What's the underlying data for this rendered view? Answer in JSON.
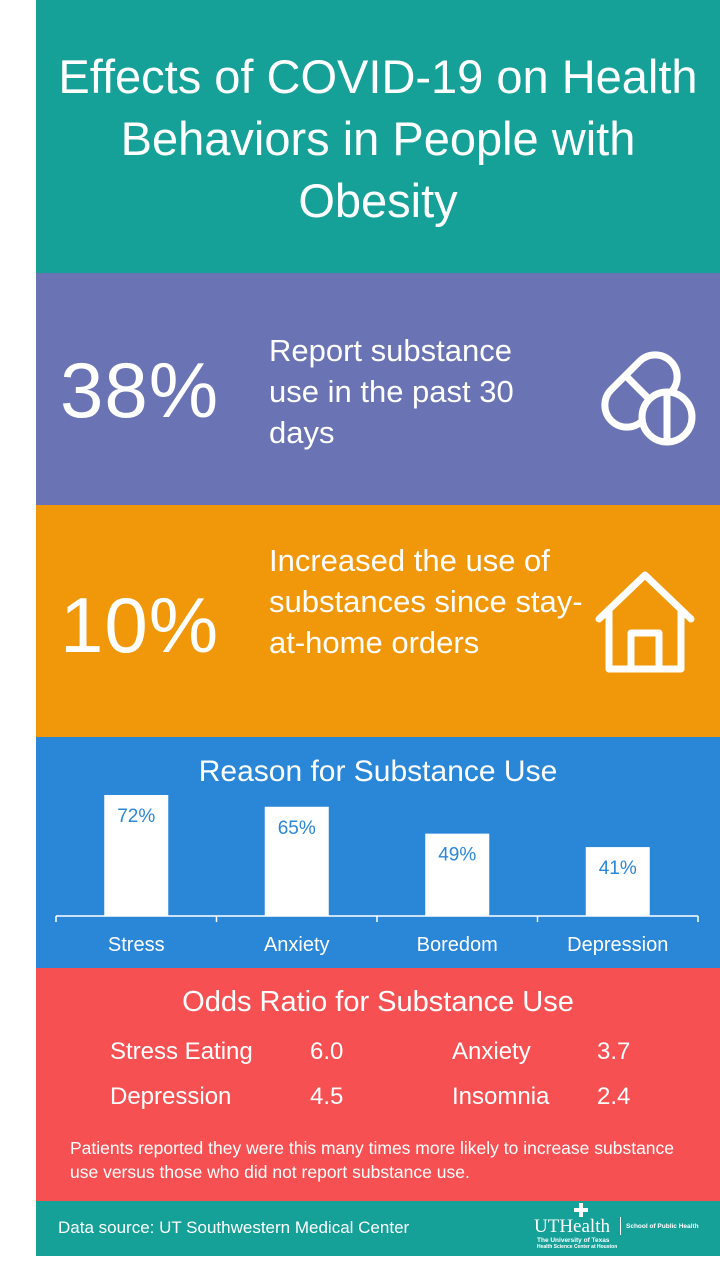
{
  "title": "Effects of COVID-19 on Health Behaviors in People with Obesity",
  "stat1": {
    "value": "38%",
    "text": "Report substance use in the past 30 days",
    "icon": "pills-icon"
  },
  "stat2": {
    "value": "10%",
    "text": "Increased the use of substances since stay-at-home orders",
    "icon": "house-icon"
  },
  "chart_data": {
    "type": "bar",
    "title": "Reason for Substance Use",
    "categories": [
      "Stress",
      "Anxiety",
      "Boredom",
      "Depression"
    ],
    "values": [
      72,
      65,
      49,
      41
    ],
    "value_labels": [
      "72%",
      "65%",
      "49%",
      "41%"
    ],
    "ylim": [
      0,
      72
    ],
    "bar_color": "#ffffff",
    "label_color": "#2a87d8"
  },
  "odds": {
    "title": "Odds Ratio for Substance Use",
    "items": [
      {
        "name": "Stress Eating",
        "value": "6.0"
      },
      {
        "name": "Anxiety",
        "value": "3.7"
      },
      {
        "name": "Depression",
        "value": "4.5"
      },
      {
        "name": "Insomnia",
        "value": "2.4"
      }
    ],
    "note": "Patients reported they were this many times more likely to increase substance use versus those who did not report substance use."
  },
  "footer": {
    "source": "Data source: UT Southwestern Medical Center",
    "logo_main": "UTHealth",
    "logo_school": "School of Public Health",
    "logo_sub1": "The University of Texas",
    "logo_sub2": "Health Science Center at Houston"
  },
  "colors": {
    "teal": "#16a198",
    "purple": "#6a73b3",
    "orange": "#f0970a",
    "blue": "#2a87d8",
    "red": "#f75052"
  }
}
